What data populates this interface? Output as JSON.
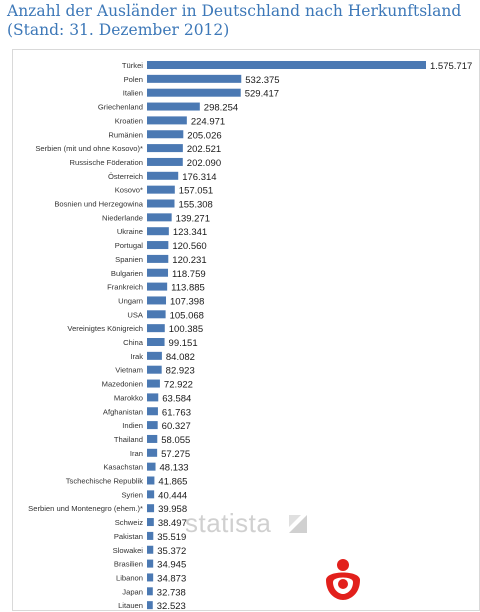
{
  "title": "Anzahl der Ausländer in Deutschland nach Herkunftsland (Stand: 31. Dezember 2012)",
  "watermark": "statista",
  "colors": {
    "bar": "#4b79b3",
    "title": "#3d78b8",
    "logo": "#e2201c"
  },
  "chart_data": {
    "type": "bar",
    "orientation": "horizontal",
    "title": "Anzahl der Ausländer in Deutschland nach Herkunftsland (Stand: 31. Dezember 2012)",
    "categories": [
      "Türkei",
      "Polen",
      "Italien",
      "Griechenland",
      "Kroatien",
      "Rumänien",
      "Serbien (mit und ohne Kosovo)*",
      "Russische Föderation",
      "Österreich",
      "Kosovo*",
      "Bosnien und Herzegowina",
      "Niederlande",
      "Ukraine",
      "Portugal",
      "Spanien",
      "Bulgarien",
      "Frankreich",
      "Ungarn",
      "USA",
      "Vereinigtes Königreich",
      "China",
      "Irak",
      "Vietnam",
      "Mazedonien",
      "Marokko",
      "Afghanistan",
      "Indien",
      "Thailand",
      "Iran",
      "Kasachstan",
      "Tschechische Republik",
      "Syrien",
      "Serbien und Montenegro (ehem.)*",
      "Schweiz",
      "Pakistan",
      "Slowakei",
      "Brasilien",
      "Libanon",
      "Japan",
      "Litauen"
    ],
    "values": [
      1575717,
      532375,
      529417,
      298254,
      224971,
      205026,
      202521,
      202090,
      176314,
      157051,
      155308,
      139271,
      123341,
      120560,
      120231,
      118759,
      113885,
      107398,
      105068,
      100385,
      99151,
      84082,
      82923,
      72922,
      63584,
      61763,
      60327,
      58055,
      57275,
      48133,
      41865,
      40444,
      39958,
      38497,
      35519,
      35372,
      34945,
      34873,
      32738,
      32523
    ],
    "value_labels": [
      "1.575.717",
      "532.375",
      "529.417",
      "298.254",
      "224.971",
      "205.026",
      "202.521",
      "202.090",
      "176.314",
      "157.051",
      "155.308",
      "139.271",
      "123.341",
      "120.560",
      "120.231",
      "118.759",
      "113.885",
      "107.398",
      "105.068",
      "100.385",
      "99.151",
      "84.082",
      "82.923",
      "72.922",
      "63.584",
      "61.763",
      "60.327",
      "58.055",
      "57.275",
      "48.133",
      "41.865",
      "40.444",
      "39.958",
      "38.497",
      "35.519",
      "35.372",
      "34.945",
      "34.873",
      "32.738",
      "32.523"
    ],
    "xlim": [
      0,
      1575717
    ],
    "grid": false,
    "legend": "none",
    "xlabel": "",
    "ylabel": ""
  }
}
